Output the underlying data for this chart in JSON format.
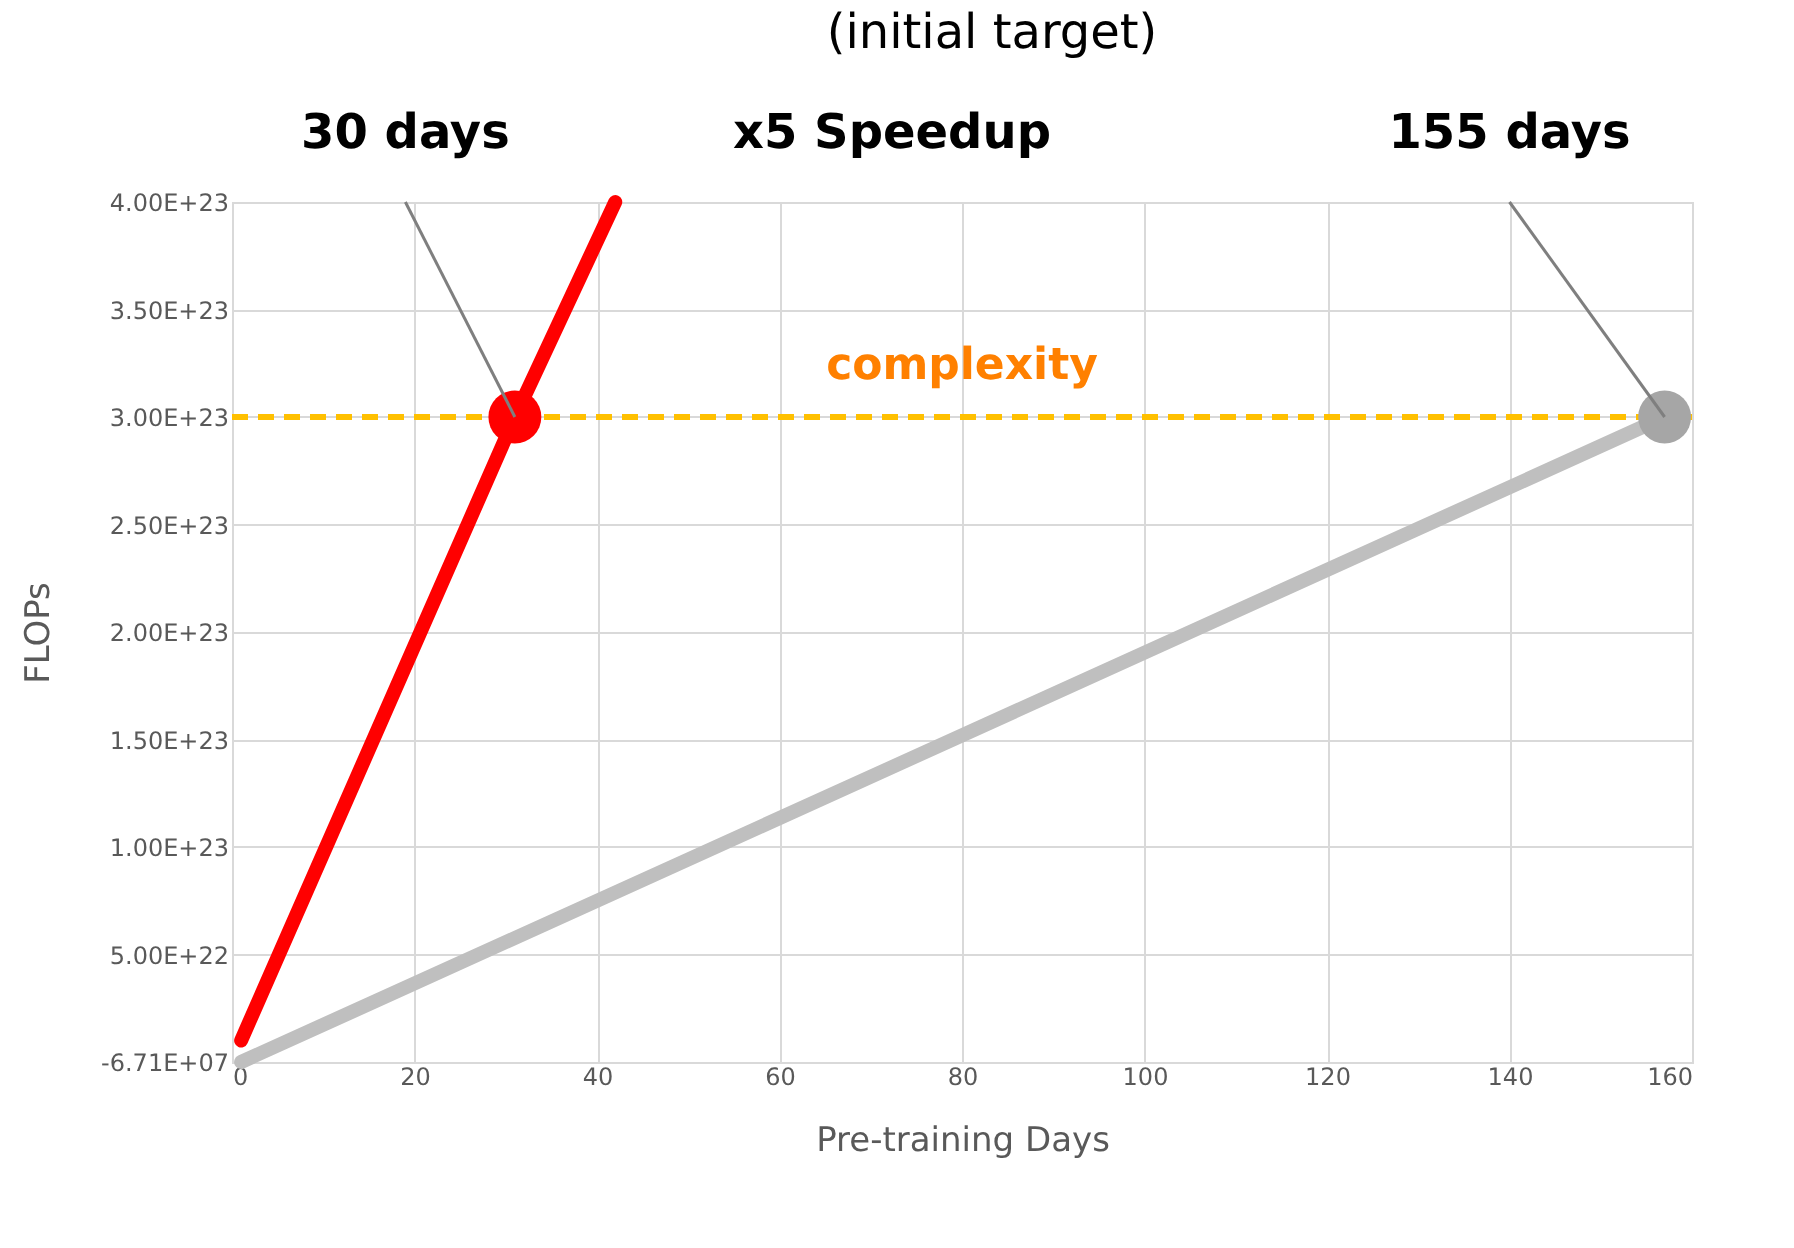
{
  "chart_data": {
    "type": "line",
    "xlabel": "Pre-training Days",
    "ylabel": "FLOPs",
    "xlim": [
      0,
      160
    ],
    "xticks": [
      0,
      20,
      40,
      60,
      80,
      100,
      120,
      140,
      160
    ],
    "ylim": [
      -67100000,
      4e+23
    ],
    "yticks": [
      {
        "value": -67100000,
        "label": "-6.71E+07"
      },
      {
        "value": 5e+22,
        "label": "5.00E+22"
      },
      {
        "value": 1e+23,
        "label": "1.00E+23"
      },
      {
        "value": 1.5e+23,
        "label": "1.50E+23"
      },
      {
        "value": 2e+23,
        "label": "2.00E+23"
      },
      {
        "value": 2.5e+23,
        "label": "2.50E+23"
      },
      {
        "value": 3e+23,
        "label": "3.00E+23"
      },
      {
        "value": 3.5e+23,
        "label": "3.50E+23"
      },
      {
        "value": 4e+23,
        "label": "4.00E+23"
      }
    ],
    "grid": true,
    "series": [
      {
        "type": "line",
        "color": "#bfbfbf",
        "x": [
          1,
          157
        ],
        "values": [
          0,
          3e+23
        ],
        "marker": "none"
      },
      {
        "type": "line",
        "color": "#ff0000",
        "x": [
          1,
          31,
          42
        ],
        "values": [
          1e+22,
          3e+23,
          4e+23
        ],
        "marker": "none"
      },
      {
        "type": "scatter",
        "color": "#ff0000",
        "x": [
          31
        ],
        "values": [
          3e+23
        ],
        "marker": "circle"
      },
      {
        "type": "scatter",
        "color": "#a6a6a6",
        "x": [
          157
        ],
        "values": [
          3e+23
        ],
        "marker": "circle"
      }
    ],
    "ref_lines": [
      {
        "axis": "y",
        "value": 3e+23,
        "label": "complexity",
        "color": "#ffc000",
        "line_style": "dashed"
      }
    ],
    "annotations": [
      {
        "text": "30 days",
        "x": 31,
        "y": 3e+23
      },
      {
        "text": "155 days",
        "x": 157,
        "y": 3e+23
      },
      "x5 Speedup",
      "(initial target)"
    ]
  }
}
